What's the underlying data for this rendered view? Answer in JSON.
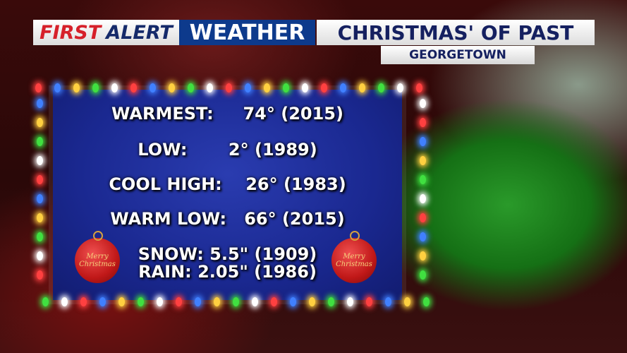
{
  "header": {
    "brand_first": "FIRST",
    "brand_alert": "ALERT",
    "brand_weather": "WEATHER",
    "title": "CHRISTMAS' OF PAST",
    "subtitle": "GEORGETOWN"
  },
  "records": [
    {
      "text": "WARMEST:     74° (2015)"
    },
    {
      "text": "LOW:       2° (1989)"
    },
    {
      "text": "COOL HIGH:    26° (1983)"
    },
    {
      "text": "WARM LOW:   66° (2015)"
    },
    {
      "text": "SNOW: 5.5\" (1909)"
    },
    {
      "text": "RAIN: 2.05\" (1986)"
    }
  ],
  "ornaments": {
    "label": "Merry Christmas"
  },
  "colors": {
    "brand_red": "#d6202a",
    "brand_navy": "#152a6a",
    "weather_blue": "#0d3a8c",
    "panel_blue": "#1a2890"
  }
}
